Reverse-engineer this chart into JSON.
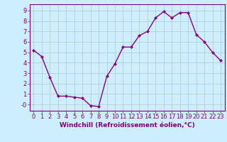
{
  "x": [
    0,
    1,
    2,
    3,
    4,
    5,
    6,
    7,
    8,
    9,
    10,
    11,
    12,
    13,
    14,
    15,
    16,
    17,
    18,
    19,
    20,
    21,
    22,
    23
  ],
  "y": [
    5.2,
    4.6,
    2.6,
    0.8,
    0.8,
    0.7,
    0.6,
    -0.1,
    -0.2,
    2.7,
    3.9,
    5.5,
    5.5,
    6.6,
    7.0,
    8.3,
    8.9,
    8.3,
    8.8,
    8.8,
    6.7,
    6.0,
    5.0,
    4.2
  ],
  "line_color": "#8B008B",
  "marker": "D",
  "marker_size": 2,
  "line_width": 1.0,
  "bg_color": "#cceeff",
  "grid_color": "#aacccc",
  "xlabel": "Windchill (Refroidissement éolien,°C)",
  "ylabel": "",
  "xlim": [
    -0.5,
    23.5
  ],
  "ylim": [
    -0.6,
    9.6
  ],
  "yticks": [
    0,
    1,
    2,
    3,
    4,
    5,
    6,
    7,
    8,
    9
  ],
  "ytick_labels": [
    "-0",
    "1",
    "2",
    "3",
    "4",
    "5",
    "6",
    "7",
    "8",
    "9"
  ],
  "xticks": [
    0,
    1,
    2,
    3,
    4,
    5,
    6,
    7,
    8,
    9,
    10,
    11,
    12,
    13,
    14,
    15,
    16,
    17,
    18,
    19,
    20,
    21,
    22,
    23
  ],
  "xlabel_fontsize": 6.5,
  "tick_fontsize": 6,
  "line_color2": "#800080",
  "spine_color": "#800080"
}
